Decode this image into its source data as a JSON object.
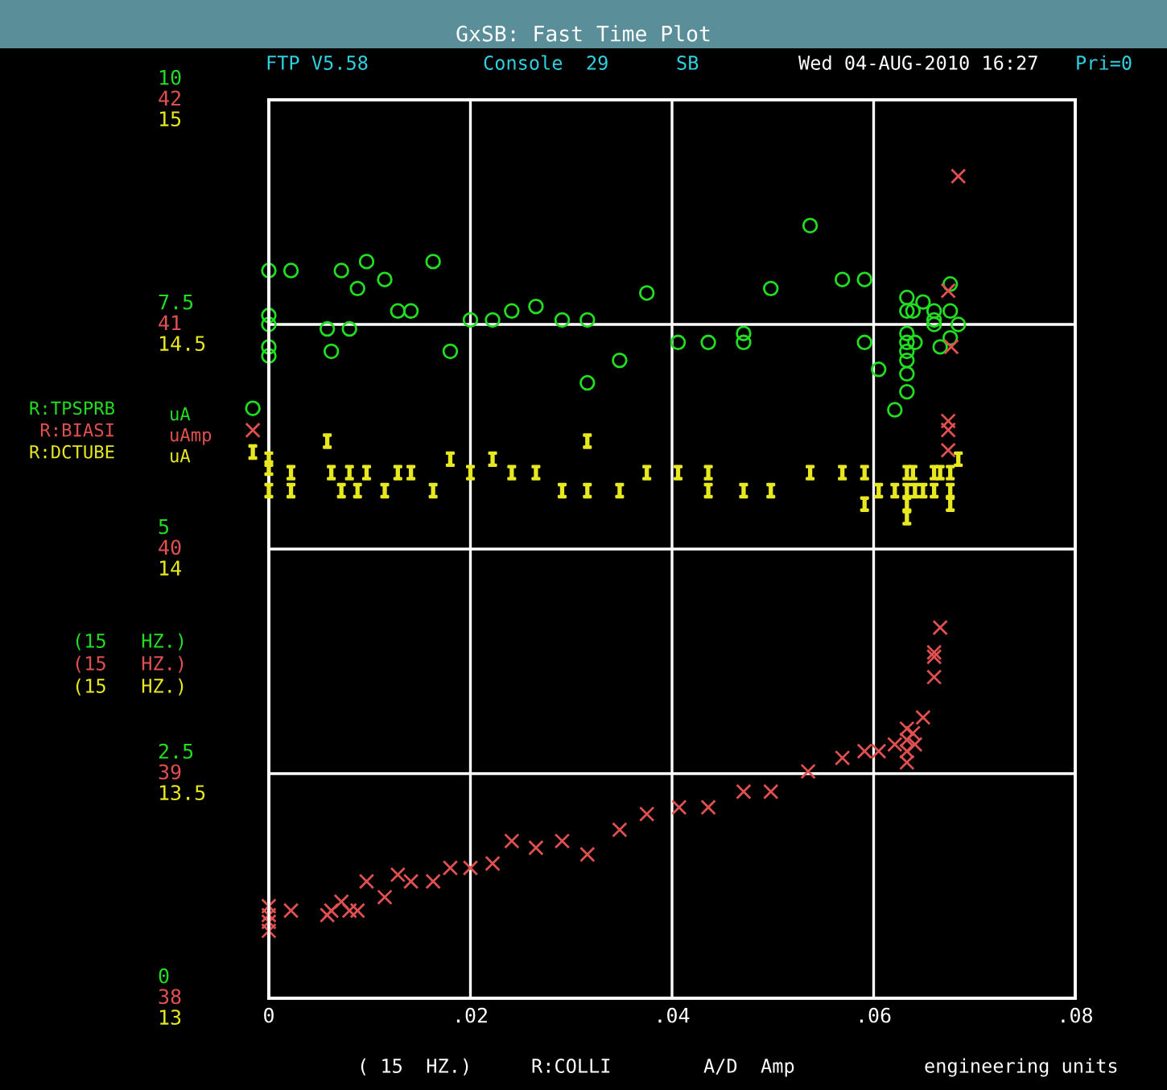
{
  "chart_data": {
    "type": "scatter",
    "title": "GxSB: Fast Time Plot",
    "xlabel": "R:COLLI",
    "annotations": [
      "FTP V5.58",
      "Console  29",
      "SB",
      "Wed 04-AUG-2010 16:27",
      "Pri=0",
      "(15   HZ.)",
      "(15   HZ.)",
      "(15   HZ.)",
      "( 15  HZ.)",
      "A/D  Amp",
      "engineering units",
      "uA",
      "uAmp",
      "uA"
    ],
    "xlim": [
      0,
      0.08
    ],
    "xticks": [
      {
        "value": 0,
        "label": "0"
      },
      {
        "value": 0.02,
        "label": ".02"
      },
      {
        "value": 0.04,
        "label": ".04"
      },
      {
        "value": 0.06,
        "label": ".06"
      },
      {
        "value": 0.08,
        "label": ".08"
      }
    ],
    "ylim": [
      0,
      10
    ],
    "yticks": [
      0,
      2.5,
      5,
      7.5,
      10
    ],
    "y2lim": [
      38,
      42
    ],
    "y2ticks": [
      38,
      39,
      40,
      41,
      42
    ],
    "y3lim": [
      13,
      15
    ],
    "y3ticks": [
      13,
      13.5,
      14,
      14.5,
      15
    ],
    "grid": true,
    "legend": "left",
    "series": [
      {
        "name": "R:TPSPRB",
        "color": "#22dd22",
        "marker": "circle",
        "axis": "y",
        "x": [
          0,
          0.0022,
          0,
          0,
          0,
          0,
          0.0058,
          0.008,
          0.0062,
          0.0072,
          0.0088,
          0.0097,
          0.0115,
          0.0128,
          0.0141,
          0.0163,
          0.018,
          0.02,
          0.0222,
          0.0241,
          0.0265,
          0.0291,
          0.0316,
          0.0316,
          0.0348,
          0.0375,
          0.0406,
          0.0436,
          0.0471,
          0.0471,
          0.0498,
          0.0537,
          0.0569,
          0.0591,
          0.0591,
          0.0605,
          0.0621,
          0.0633,
          0.0633,
          0.0633,
          0.0633,
          0.0633,
          0.0633,
          0.0633,
          0.0633,
          0.0639,
          0.0641,
          0.0649,
          0.066,
          0.066,
          0.066,
          0.0666,
          0.0676,
          0.0676,
          0.0676,
          0.0684
        ],
        "values": [
          8.1,
          8.1,
          7.6,
          7.5,
          7.25,
          7.15,
          7.45,
          7.45,
          7.2,
          8.1,
          7.9,
          8.2,
          8.0,
          7.65,
          7.65,
          8.2,
          7.2,
          7.55,
          7.55,
          7.65,
          7.7,
          7.55,
          7.55,
          6.85,
          7.1,
          7.85,
          7.3,
          7.3,
          7.4,
          7.3,
          7.9,
          8.6,
          8.0,
          8.0,
          7.3,
          7.0,
          6.55,
          7.8,
          7.65,
          7.4,
          7.3,
          7.2,
          7.1,
          6.95,
          6.75,
          7.65,
          7.3,
          7.75,
          7.65,
          7.55,
          7.5,
          7.25,
          7.95,
          7.65,
          7.35,
          7.5
        ]
      },
      {
        "name": "R:BIASI",
        "color": "#e05050",
        "marker": "cross",
        "axis": "y2",
        "x": [
          0,
          0,
          0,
          0,
          0.0022,
          0.0058,
          0.0062,
          0.0072,
          0.008,
          0.0088,
          0.0097,
          0.0115,
          0.0128,
          0.0141,
          0.0163,
          0.018,
          0.02,
          0.0222,
          0.0241,
          0.0265,
          0.0291,
          0.0316,
          0.0348,
          0.0375,
          0.0407,
          0.0436,
          0.0471,
          0.0498,
          0.0535,
          0.0569,
          0.0591,
          0.0605,
          0.0621,
          0.0633,
          0.0633,
          0.0633,
          0.0633,
          0.0639,
          0.0641,
          0.0649,
          0.066,
          0.066,
          0.066,
          0.0666,
          0.0674,
          0.0677,
          0.0674,
          0.0674,
          0.0674,
          0.0684
        ],
        "values": [
          38.41,
          38.37,
          38.34,
          38.3,
          38.39,
          38.37,
          38.39,
          38.43,
          38.39,
          38.39,
          38.52,
          38.45,
          38.55,
          38.52,
          38.52,
          38.58,
          38.58,
          38.6,
          38.7,
          38.67,
          38.7,
          38.64,
          38.75,
          38.82,
          38.85,
          38.85,
          38.92,
          38.92,
          39.01,
          39.07,
          39.1,
          39.1,
          39.13,
          39.2,
          39.15,
          39.1,
          39.05,
          39.18,
          39.13,
          39.25,
          39.43,
          39.54,
          39.52,
          39.65,
          41.15,
          40.9,
          40.57,
          40.53,
          40.44,
          41.66
        ]
      },
      {
        "name": "R:DCTUBE",
        "color": "#e8e820",
        "axis": "y3",
        "x": [
          0,
          0,
          0,
          0.0022,
          0.0022,
          0.0058,
          0.0062,
          0.0072,
          0.008,
          0.0088,
          0.0097,
          0.0115,
          0.0128,
          0.0141,
          0.0163,
          0.018,
          0.02,
          0.0222,
          0.0241,
          0.0265,
          0.0291,
          0.0316,
          0.0316,
          0.0348,
          0.0375,
          0.0406,
          0.0436,
          0.0436,
          0.0471,
          0.0498,
          0.0537,
          0.0569,
          0.0591,
          0.0591,
          0.0605,
          0.0621,
          0.0633,
          0.0633,
          0.0633,
          0.0633,
          0.0639,
          0.0641,
          0.0649,
          0.066,
          0.066,
          0.0666,
          0.0676,
          0.0676,
          0.0676,
          0.0684
        ],
        "values": [
          14.2,
          14.18,
          14.13,
          14.17,
          14.13,
          14.24,
          14.17,
          14.13,
          14.17,
          14.13,
          14.17,
          14.13,
          14.17,
          14.17,
          14.13,
          14.2,
          14.17,
          14.2,
          14.17,
          14.17,
          14.13,
          14.24,
          14.13,
          14.13,
          14.17,
          14.17,
          14.17,
          14.13,
          14.13,
          14.13,
          14.17,
          14.17,
          14.17,
          14.1,
          14.13,
          14.13,
          14.17,
          14.13,
          14.1,
          14.07,
          14.17,
          14.13,
          14.13,
          14.17,
          14.13,
          14.17,
          14.17,
          14.13,
          14.1,
          14.2
        ]
      }
    ]
  }
}
